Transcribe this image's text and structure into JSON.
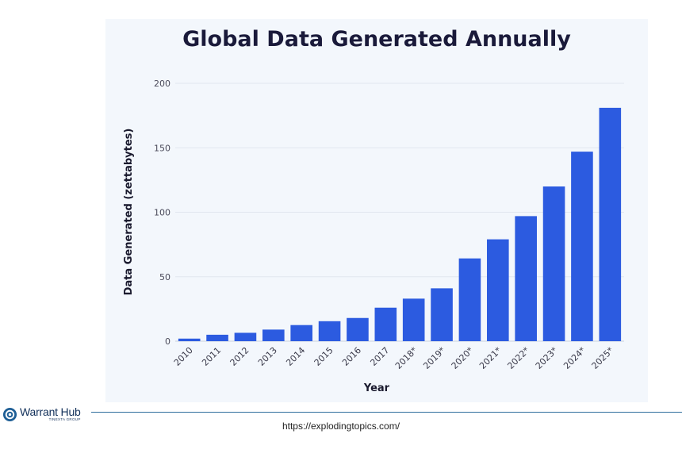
{
  "chart_data": {
    "type": "bar",
    "title": "Global Data Generated Annually",
    "xlabel": "Year",
    "ylabel": "Data Generated (zettabytes)",
    "categories": [
      "2010",
      "2011",
      "2012",
      "2013",
      "2014",
      "2015",
      "2016",
      "2017",
      "2018*",
      "2019*",
      "2020*",
      "2021*",
      "2022*",
      "2023*",
      "2024*",
      "2025*"
    ],
    "values": [
      2,
      5,
      6.5,
      9,
      12.5,
      15.5,
      18,
      26,
      33,
      41,
      64.2,
      79,
      97,
      120,
      147,
      181
    ],
    "ylim": [
      0,
      200
    ],
    "yticks": [
      "0",
      "50",
      "100",
      "150",
      "200"
    ],
    "grid": true,
    "bar_color": "#2c5be0"
  },
  "footer": {
    "logo_text": "Warrant Hub",
    "logo_subtext": "TINEXTA GROUP",
    "logo_icon": "warrant-hub-logo-icon",
    "source_url": "https://explodingtopics.com/"
  }
}
